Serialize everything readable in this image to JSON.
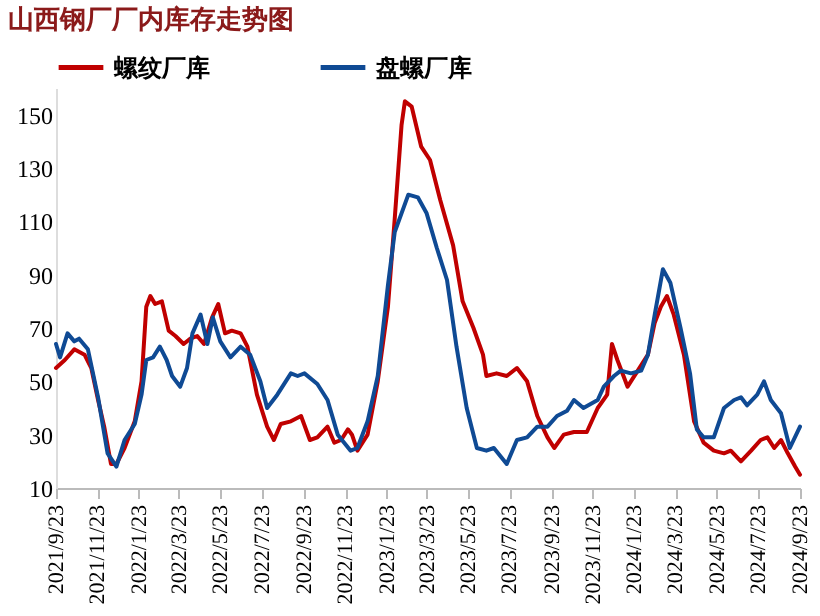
{
  "chart_data": {
    "type": "line",
    "title": "山西钢厂厂内库存走势图",
    "legend": "top",
    "grid": false,
    "line_style": "solid",
    "marker": "none",
    "ylim": [
      10,
      160
    ],
    "yticks": [
      10,
      30,
      50,
      70,
      90,
      110,
      130,
      150
    ],
    "xlim": [
      "2021-09-23",
      "2024-09-23"
    ],
    "xticks": [
      {
        "value": "2021-09-23",
        "label": "2021/9/23"
      },
      {
        "value": "2021-11-23",
        "label": "2021/11/23"
      },
      {
        "value": "2022-01-23",
        "label": "2022/1/23"
      },
      {
        "value": "2022-03-23",
        "label": "2022/3/23"
      },
      {
        "value": "2022-05-23",
        "label": "2022/5/23"
      },
      {
        "value": "2022-07-23",
        "label": "2022/7/23"
      },
      {
        "value": "2022-09-23",
        "label": "2022/9/23"
      },
      {
        "value": "2022-11-23",
        "label": "2022/11/23"
      },
      {
        "value": "2023-01-23",
        "label": "2023/1/23"
      },
      {
        "value": "2023-03-23",
        "label": "2023/3/23"
      },
      {
        "value": "2023-05-23",
        "label": "2023/5/23"
      },
      {
        "value": "2023-07-23",
        "label": "2023/7/23"
      },
      {
        "value": "2023-09-23",
        "label": "2023/9/23"
      },
      {
        "value": "2023-11-23",
        "label": "2023/11/23"
      },
      {
        "value": "2024-01-23",
        "label": "2024/1/23"
      },
      {
        "value": "2024-03-23",
        "label": "2024/3/23"
      },
      {
        "value": "2024-05-23",
        "label": "2024/5/23"
      },
      {
        "value": "2024-07-23",
        "label": "2024/7/23"
      },
      {
        "value": "2024-09-23",
        "label": "2024/9/23"
      }
    ],
    "series": [
      {
        "name": "螺纹厂库",
        "color": "#c00000",
        "x": [
          "2021-09-23",
          "2021-10-06",
          "2021-10-20",
          "2021-11-04",
          "2021-11-14",
          "2021-11-24",
          "2021-12-03",
          "2021-12-13",
          "2021-12-21",
          "2022-01-02",
          "2022-01-17",
          "2022-01-27",
          "2022-02-03",
          "2022-02-09",
          "2022-02-16",
          "2022-02-26",
          "2022-03-08",
          "2022-03-18",
          "2022-03-30",
          "2022-04-09",
          "2022-04-19",
          "2022-04-29",
          "2022-05-11",
          "2022-05-20",
          "2022-05-30",
          "2022-06-09",
          "2022-06-22",
          "2022-07-02",
          "2022-07-16",
          "2022-07-31",
          "2022-08-10",
          "2022-08-20",
          "2022-09-04",
          "2022-09-19",
          "2022-10-02",
          "2022-10-13",
          "2022-10-28",
          "2022-11-07",
          "2022-11-17",
          "2022-11-27",
          "2022-12-03",
          "2022-12-11",
          "2022-12-26",
          "2023-01-10",
          "2023-01-25",
          "2023-02-04",
          "2023-02-14",
          "2023-02-19",
          "2023-03-01",
          "2023-03-15",
          "2023-03-28",
          "2023-04-12",
          "2023-05-01",
          "2023-05-15",
          "2023-05-31",
          "2023-06-14",
          "2023-06-19",
          "2023-07-04",
          "2023-07-19",
          "2023-08-03",
          "2023-08-18",
          "2023-09-02",
          "2023-09-17",
          "2023-09-27",
          "2023-10-11",
          "2023-10-26",
          "2023-11-14",
          "2023-11-30",
          "2023-12-14",
          "2023-12-21",
          "2023-12-29",
          "2024-01-13",
          "2024-01-28",
          "2024-02-12",
          "2024-02-22",
          "2024-03-02",
          "2024-03-11",
          "2024-03-21",
          "2024-04-05",
          "2024-04-20",
          "2024-05-04",
          "2024-05-19",
          "2024-06-03",
          "2024-06-13",
          "2024-06-28",
          "2024-07-13",
          "2024-07-27",
          "2024-08-06",
          "2024-08-16",
          "2024-08-26",
          "2024-09-05",
          "2024-09-16",
          "2024-09-23"
        ],
        "values": [
          55,
          58,
          62,
          60,
          55,
          43,
          33,
          19,
          19,
          25,
          35,
          50,
          78,
          82,
          79,
          80,
          69,
          67,
          64,
          66,
          67,
          64,
          74,
          79,
          68,
          69,
          68,
          63,
          45,
          33,
          28,
          34,
          35,
          37,
          28,
          29,
          33,
          27,
          28,
          32,
          30,
          24,
          30,
          50,
          78,
          111,
          146,
          155,
          153,
          138,
          133,
          118,
          101,
          80,
          70,
          60,
          52,
          53,
          52,
          55,
          50,
          37,
          29,
          25,
          30,
          31,
          31,
          40,
          45,
          64,
          58,
          48,
          54,
          60,
          72,
          78,
          82,
          75,
          60,
          35,
          27,
          24,
          23,
          24,
          20,
          24,
          28,
          29,
          25,
          28,
          23,
          18,
          15
        ]
      },
      {
        "name": "盘螺厂库",
        "color": "#0f4a94",
        "x": [
          "2021-09-23",
          "2021-09-29",
          "2021-10-10",
          "2021-10-20",
          "2021-10-27",
          "2021-11-09",
          "2021-11-24",
          "2021-12-08",
          "2021-12-21",
          "2022-01-02",
          "2022-01-17",
          "2022-01-27",
          "2022-02-03",
          "2022-02-13",
          "2022-02-23",
          "2022-03-05",
          "2022-03-13",
          "2022-03-25",
          "2022-04-04",
          "2022-04-12",
          "2022-04-24",
          "2022-05-04",
          "2022-05-12",
          "2022-05-23",
          "2022-06-07",
          "2022-06-22",
          "2022-07-06",
          "2022-07-21",
          "2022-07-31",
          "2022-08-15",
          "2022-09-04",
          "2022-09-14",
          "2022-09-24",
          "2022-10-13",
          "2022-10-28",
          "2022-11-12",
          "2022-12-01",
          "2022-12-11",
          "2022-12-26",
          "2023-01-10",
          "2023-01-25",
          "2023-02-04",
          "2023-02-14",
          "2023-02-24",
          "2023-03-10",
          "2023-03-23",
          "2023-04-07",
          "2023-04-22",
          "2023-05-06",
          "2023-05-21",
          "2023-06-05",
          "2023-06-19",
          "2023-06-30",
          "2023-07-19",
          "2023-08-03",
          "2023-08-18",
          "2023-09-02",
          "2023-09-17",
          "2023-10-01",
          "2023-10-16",
          "2023-10-26",
          "2023-11-09",
          "2023-11-30",
          "2023-12-09",
          "2023-12-24",
          "2024-01-03",
          "2024-01-18",
          "2024-02-02",
          "2024-02-12",
          "2024-02-22",
          "2024-03-05",
          "2024-03-16",
          "2024-03-31",
          "2024-04-14",
          "2024-04-24",
          "2024-05-04",
          "2024-05-19",
          "2024-06-03",
          "2024-06-18",
          "2024-06-28",
          "2024-07-07",
          "2024-07-22",
          "2024-08-01",
          "2024-08-11",
          "2024-08-26",
          "2024-09-08",
          "2024-09-23"
        ],
        "values": [
          64,
          59,
          68,
          65,
          66,
          62,
          44,
          23,
          18,
          28,
          34,
          45,
          58,
          59,
          63,
          58,
          52,
          48,
          55,
          68,
          75,
          64,
          74,
          65,
          59,
          63,
          60,
          50,
          40,
          45,
          53,
          52,
          53,
          49,
          43,
          30,
          24,
          25,
          35,
          52,
          86,
          106,
          113,
          120,
          119,
          113,
          100,
          88,
          63,
          40,
          25,
          24,
          25,
          19,
          28,
          29,
          33,
          33,
          37,
          39,
          43,
          40,
          43,
          48,
          52,
          54,
          53,
          54,
          60,
          75,
          92,
          87,
          70,
          53,
          32,
          29,
          29,
          40,
          43,
          44,
          41,
          45,
          50,
          43,
          38,
          25,
          33
        ]
      }
    ]
  }
}
